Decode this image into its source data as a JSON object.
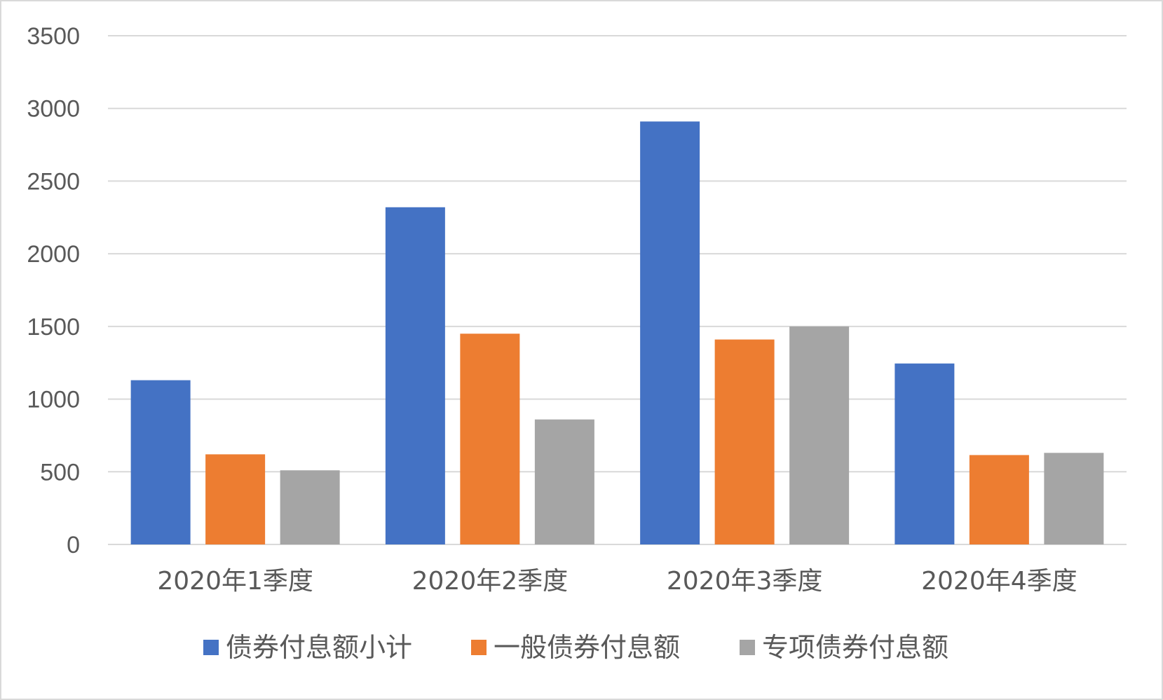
{
  "chart_data": {
    "type": "bar",
    "title": "",
    "xlabel": "",
    "ylabel": "",
    "ylim": [
      0,
      3500
    ],
    "yticks": [
      0,
      500,
      1000,
      1500,
      2000,
      2500,
      3000,
      3500
    ],
    "grid": true,
    "legend_position": "bottom",
    "categories": [
      "2020年1季度",
      "2020年2季度",
      "2020年3季度",
      "2020年4季度"
    ],
    "series": [
      {
        "name": "债券付息额小计",
        "color": "#4472c4",
        "values": [
          1130,
          2320,
          2910,
          1245
        ]
      },
      {
        "name": "一般债券付息额",
        "color": "#ed7d31",
        "values": [
          620,
          1450,
          1410,
          615
        ]
      },
      {
        "name": "专项债券付息额",
        "color": "#a5a5a5",
        "values": [
          510,
          860,
          1500,
          630
        ]
      }
    ]
  }
}
